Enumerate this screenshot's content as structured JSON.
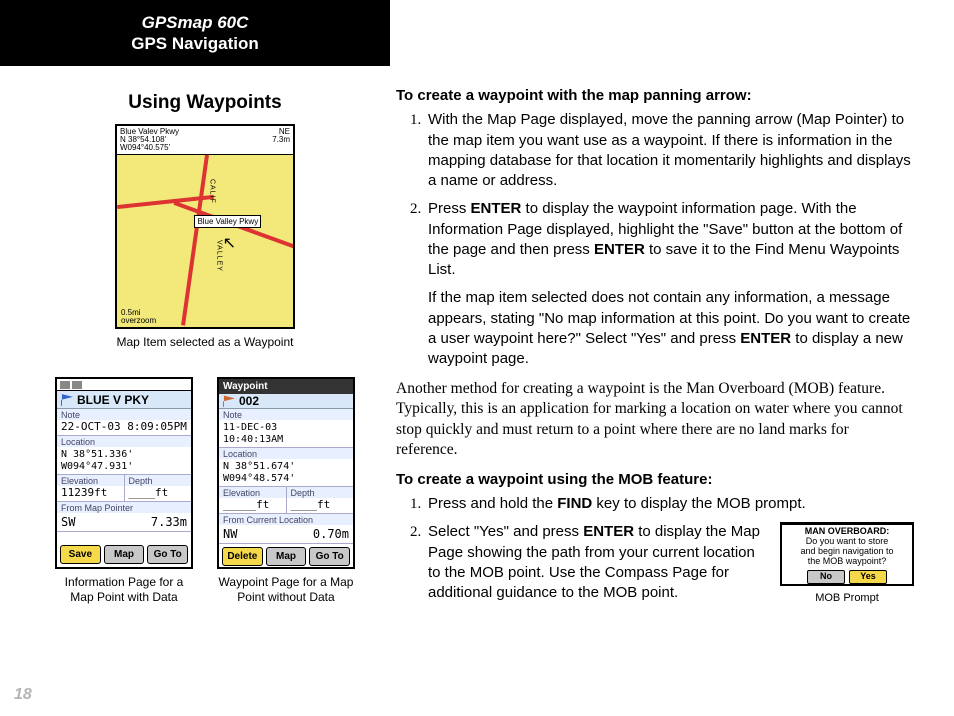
{
  "header": {
    "model": "GPSmap 60C",
    "section": "GPS Navigation"
  },
  "left": {
    "title": "Using Waypoints",
    "map": {
      "top_title": "Blue Valev Pkwy",
      "coord1": "N  38°54.108'",
      "coord2": "W094°40.575'",
      "ne": "NE",
      "dist": "7.3m",
      "callout": "Blue Valley Pkwy",
      "road_v1": "CALIF",
      "road_v2": "VALLEY",
      "scale1": "0.5mi",
      "scale2": "overzoom",
      "caption": "Map Item selected as a Waypoint"
    },
    "screen1": {
      "title": "BLUE V PKY",
      "note_label": "Note",
      "note_value": "22-OCT-03 8:09:05PM",
      "loc_label": "Location",
      "coord1": "N  38°51.336'",
      "coord2": "W094°47.931'",
      "elev_label": "Elevation",
      "depth_label": "Depth",
      "elev_value": "11239ft",
      "depth_value": "____ft",
      "from_label": "From Map Pointer",
      "dir": "SW",
      "dist": "7.33m",
      "btn1": "Save",
      "btn2": "Map",
      "btn3": "Go To",
      "caption": "Information Page for a Map Point with Data"
    },
    "screen2": {
      "header": "Waypoint",
      "title": "002",
      "note_label": "Note",
      "note_value1": "11-DEC-03",
      "note_value2": "10:40:13AM",
      "loc_label": "Location",
      "coord1": "N  38°51.674'",
      "coord2": "W094°48.574'",
      "elev_label": "Elevation",
      "depth_label": "Depth",
      "elev_value": "_____ft",
      "depth_value": "____ft",
      "from_label": "From Current Location",
      "dir": "NW",
      "dist": "0.70m",
      "btn1": "Delete",
      "btn2": "Map",
      "btn3": "Go To",
      "caption": "Waypoint Page for a Map Point without Data"
    }
  },
  "right": {
    "h1": "To create a waypoint with the map panning arrow:",
    "step1": "With the Map Page displayed, move the panning arrow (Map Pointer) to the map item you want use as a waypoint. If there is information in the mapping database for that location it momentarily highlights and displays a name or address.",
    "step2a": "Press ",
    "step2b": " to display the waypoint information page. With the Information Page displayed, highlight the \"Save\" button at the bottom of the page and then press ",
    "step2c": " to save it to the Find Menu Waypoints List.",
    "step2_para": "If the map item selected does not contain any information, a message appears, stating \"No map information at this point. Do you want to create a user waypoint here?\" Select \"Yes\" and press ",
    "step2_para_end": " to display a new waypoint page.",
    "body": "Another method for creating a waypoint is the Man Overboard (MOB) feature. Typically, this is an application for marking a location on water where you cannot stop quickly and must return to a point where there are no land marks for reference.",
    "h2": "To create a waypoint using the MOB feature:",
    "mob1a": "Press and hold the ",
    "mob1b": " key to display the MOB prompt.",
    "mob2a": "Select \"Yes\" and press ",
    "mob2b": " to display the Map Page showing the path from your current location to the MOB point. Use the Compass Page for additional guidance to the MOB point.",
    "mob_fig": {
      "line1": "MAN OVERBOARD:",
      "line2": "Do you want to store",
      "line3": "and begin navigation to",
      "line4": "the MOB waypoint?",
      "no": "No",
      "yes": "Yes",
      "caption": "MOB Prompt"
    },
    "enter": "ENTER",
    "find": "FIND"
  },
  "page_number": "18"
}
